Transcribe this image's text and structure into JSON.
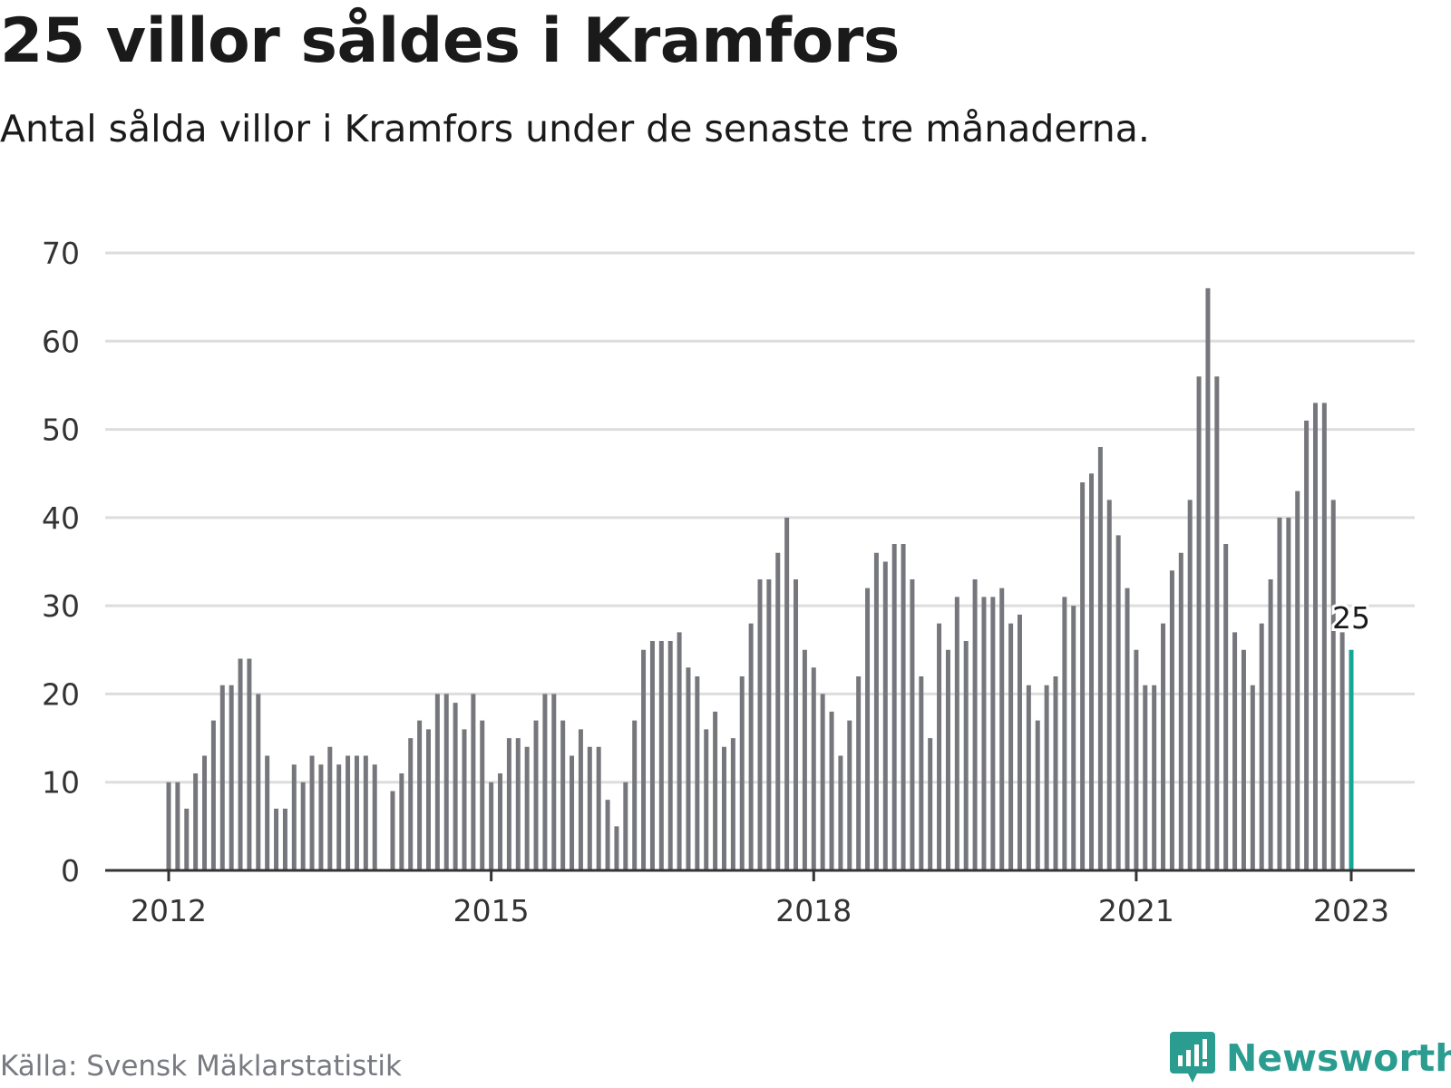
{
  "title": "25 villor såldes i Kramfors",
  "subtitle": "Antal sålda villor i Kramfors under de senaste tre månaderna.",
  "source": "Källa: Svensk Mäklarstatistik",
  "brand": "Newsworthy",
  "colors": {
    "bar": "#76777c",
    "highlight": "#17a596",
    "grid": "#dddddd",
    "axis": "#333333",
    "brand": "#2a9d90"
  },
  "chart_data": {
    "type": "bar",
    "x_start": "2012-01",
    "x_end": "2023-01",
    "x_tick_labels": [
      "2012",
      "2015",
      "2018",
      "2021",
      "2023"
    ],
    "y_ticks": [
      0,
      10,
      20,
      30,
      40,
      50,
      60,
      70
    ],
    "ylim": [
      0,
      70
    ],
    "grid": true,
    "highlight_label": "25",
    "values": [
      10,
      10,
      7,
      11,
      13,
      17,
      21,
      21,
      24,
      24,
      20,
      13,
      7,
      7,
      12,
      10,
      13,
      12,
      14,
      12,
      13,
      13,
      13,
      12,
      null,
      9,
      11,
      15,
      17,
      16,
      20,
      20,
      19,
      16,
      20,
      17,
      10,
      11,
      15,
      15,
      14,
      17,
      20,
      20,
      17,
      13,
      16,
      14,
      14,
      8,
      5,
      10,
      17,
      25,
      26,
      26,
      26,
      27,
      23,
      22,
      16,
      18,
      14,
      15,
      22,
      28,
      33,
      33,
      36,
      40,
      33,
      25,
      23,
      20,
      18,
      13,
      17,
      22,
      32,
      36,
      35,
      37,
      37,
      33,
      22,
      15,
      28,
      25,
      31,
      26,
      33,
      31,
      31,
      32,
      28,
      29,
      21,
      17,
      21,
      22,
      31,
      30,
      44,
      45,
      48,
      42,
      38,
      32,
      25,
      21,
      21,
      28,
      34,
      36,
      42,
      56,
      66,
      56,
      37,
      27,
      25,
      21,
      28,
      33,
      40,
      40,
      43,
      51,
      53,
      53,
      42,
      27,
      25
    ]
  }
}
